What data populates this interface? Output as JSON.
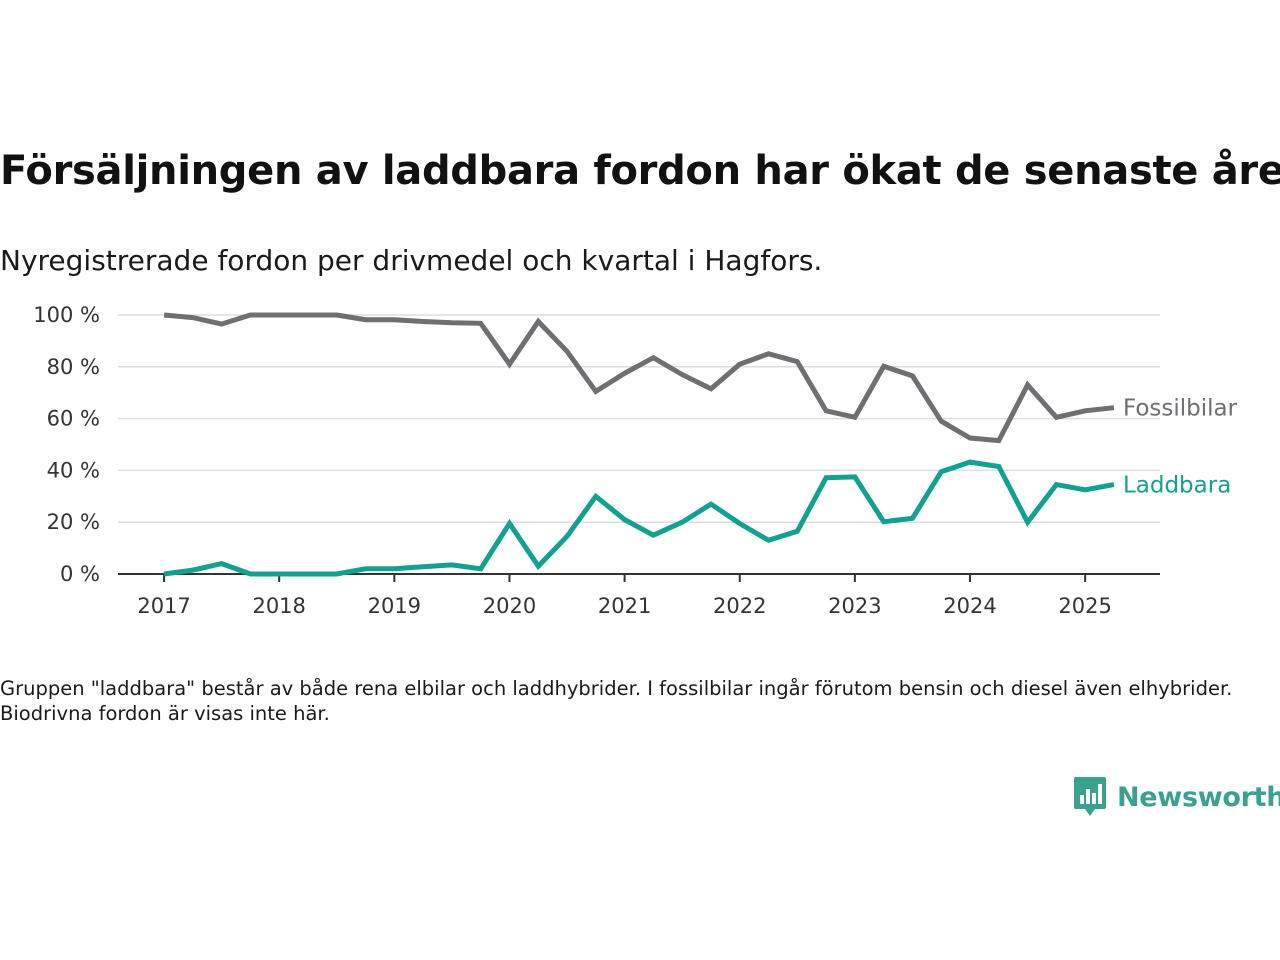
{
  "title": "Försäljningen av laddbara fordon har ökat de senaste åren",
  "subtitle": "Nyregistrerade fordon per drivmedel och kvartal i Hagfors.",
  "note": "Gruppen \"laddbara\" består av både rena elbilar och laddhybrider. I fossilbilar ingår förutom bensin och diesel även elhybrider. Biodrivna fordon är visas inte här.",
  "brand": {
    "name": "Newsworthy",
    "icon": "newsworthy-logo-icon",
    "color": "#3aa08f"
  },
  "chart_data": {
    "type": "line",
    "y_tick_labels": [
      "0 %",
      "20 %",
      "40 %",
      "60 %",
      "80 %",
      "100 %"
    ],
    "y_ticks": [
      0,
      20,
      40,
      60,
      80,
      100
    ],
    "ylim": [
      0,
      100
    ],
    "x_tick_labels": [
      "2017",
      "2018",
      "2019",
      "2020",
      "2021",
      "2022",
      "2023",
      "2024",
      "2025"
    ],
    "x_ticks": [
      2017,
      2018,
      2019,
      2020,
      2021,
      2022,
      2023,
      2024,
      2025
    ],
    "xlim": [
      2016.6,
      2025.65
    ],
    "grid": true,
    "x": [
      2017.0,
      2017.25,
      2017.5,
      2017.75,
      2018.0,
      2018.25,
      2018.5,
      2018.75,
      2019.0,
      2019.25,
      2019.5,
      2019.75,
      2020.0,
      2020.25,
      2020.5,
      2020.75,
      2021.0,
      2021.25,
      2021.5,
      2021.75,
      2022.0,
      2022.25,
      2022.5,
      2022.75,
      2023.0,
      2023.25,
      2023.5,
      2023.75,
      2024.0,
      2024.25,
      2024.5,
      2024.75,
      2025.0,
      2025.25
    ],
    "series": [
      {
        "name": "Fossilbilar",
        "color": "#6e6e73",
        "values": [
          100,
          99,
          96.5,
          100,
          100,
          100,
          100,
          98.2,
          98.2,
          97.5,
          97,
          96.8,
          81,
          97.5,
          86,
          70.5,
          77.5,
          83.5,
          77,
          71.5,
          81,
          85,
          82,
          63,
          60.5,
          80.2,
          76.5,
          59,
          52.5,
          51.5,
          73,
          60.5,
          63,
          64.2
        ]
      },
      {
        "name": "Laddbara",
        "color": "#12a191",
        "values": [
          0,
          1.5,
          4,
          0,
          0,
          0,
          0,
          2,
          2,
          2.8,
          3.5,
          2,
          19.5,
          3,
          14.5,
          30,
          21,
          15,
          20,
          27,
          19.5,
          13,
          16.5,
          37.2,
          37.5,
          20.2,
          21.5,
          39.5,
          43.2,
          41.5,
          20,
          34.5,
          32.5,
          34.5
        ]
      }
    ]
  }
}
